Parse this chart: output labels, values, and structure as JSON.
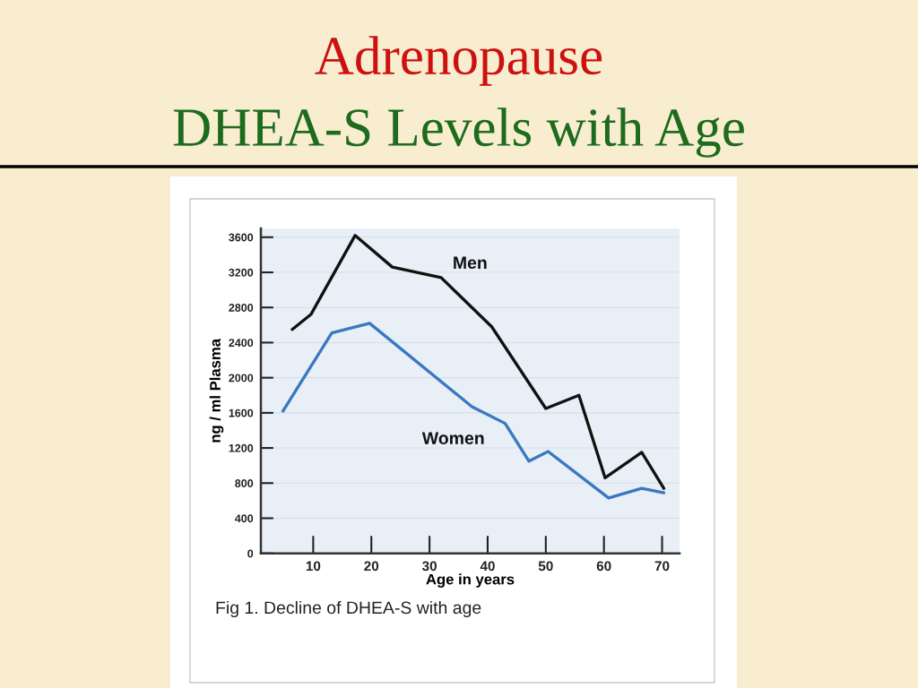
{
  "chart_data": {
    "type": "line",
    "title": "Adrenopause",
    "subtitle": "DHEA-S Levels with Age",
    "xlabel": "Age in years",
    "ylabel": "ng / ml Plasma",
    "annotations": [
      "Fig 1. Decline of DHEA-S with age"
    ],
    "series": [
      {
        "name": "Men",
        "color": "#111111",
        "x": [
          6.4,
          9.6,
          17.2,
          23.6,
          32.0,
          40.7,
          50.0,
          55.7,
          60.2,
          66.5,
          70.3
        ],
        "values": [
          2550,
          2720,
          3620,
          3260,
          3140,
          2580,
          1650,
          1800,
          860,
          1150,
          740
        ]
      },
      {
        "name": "Women",
        "color": "#3a78c0",
        "x": [
          4.8,
          13.2,
          19.7,
          37.3,
          43.0,
          47.1,
          50.4,
          60.8,
          66.5,
          70.3
        ],
        "values": [
          1620,
          2510,
          2620,
          1670,
          1480,
          1050,
          1160,
          630,
          740,
          690
        ]
      }
    ],
    "xlim": [
      1,
      73
    ],
    "ylim": [
      0,
      3700
    ],
    "xticks": [
      10,
      20,
      30,
      40,
      50,
      60,
      70
    ],
    "yticks": [
      0,
      400,
      800,
      1200,
      1600,
      2000,
      2400,
      2800,
      3200,
      3600
    ],
    "grid": "y"
  }
}
